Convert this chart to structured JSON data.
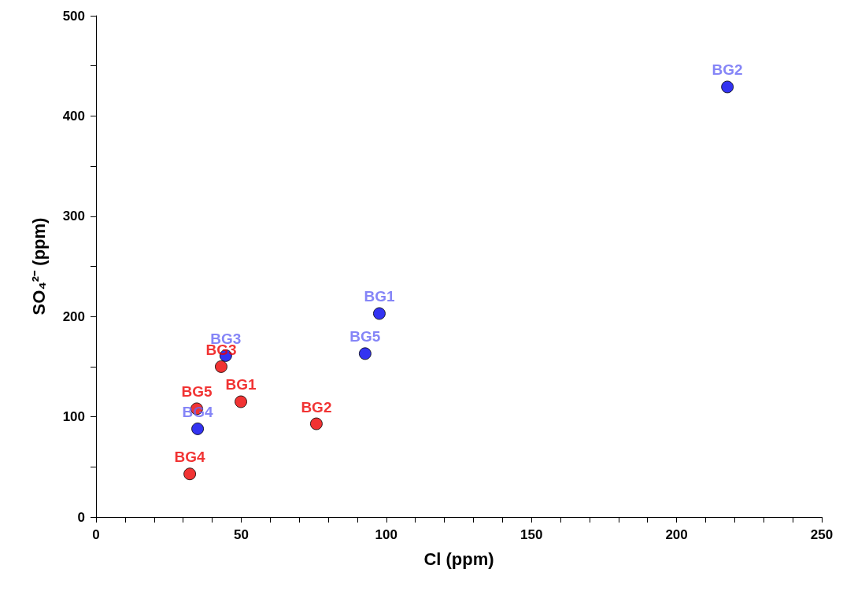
{
  "chart_data": {
    "type": "scatter",
    "xlabel": "Cl (ppm)",
    "ylabel": "SO₄²⁻ (ppm)",
    "marker": "circle",
    "grid": false,
    "xlim": [
      0,
      250
    ],
    "ylim": [
      0,
      500
    ],
    "xticks": [
      0,
      {
        "value": 10,
        "label": null
      },
      {
        "value": 20,
        "label": null
      },
      {
        "value": 30,
        "label": null
      },
      {
        "value": 40,
        "label": null
      },
      50,
      {
        "value": 60,
        "label": null
      },
      {
        "value": 70,
        "label": null
      },
      {
        "value": 80,
        "label": null
      },
      {
        "value": 90,
        "label": null
      },
      100,
      {
        "value": 110,
        "label": null
      },
      {
        "value": 120,
        "label": null
      },
      {
        "value": 130,
        "label": null
      },
      {
        "value": 140,
        "label": null
      },
      150,
      {
        "value": 160,
        "label": null
      },
      {
        "value": 170,
        "label": null
      },
      {
        "value": 180,
        "label": null
      },
      {
        "value": 190,
        "label": null
      },
      200,
      {
        "value": 210,
        "label": null
      },
      {
        "value": 220,
        "label": null
      },
      {
        "value": 230,
        "label": null
      },
      {
        "value": 240,
        "label": null
      },
      250
    ],
    "yticks": [
      0,
      {
        "value": 50,
        "label": null
      },
      100,
      {
        "value": 150,
        "label": null
      },
      200,
      {
        "value": 250,
        "label": null
      },
      300,
      {
        "value": 350,
        "label": null
      },
      400,
      {
        "value": 450,
        "label": null
      },
      500
    ],
    "series": [
      {
        "color": "#0000ee",
        "x": [
          97.6,
          217.5,
          44.7,
          35,
          92.7
        ],
        "values": [
          203,
          429,
          161,
          88,
          163
        ],
        "value_labels": [
          "BG1",
          "BG2",
          "BG3",
          "BG4",
          "BG5"
        ]
      },
      {
        "color": "#ee0000",
        "x": [
          49.9,
          75.9,
          43.1,
          32.3,
          34.7
        ],
        "values": [
          115,
          93,
          150,
          43,
          108
        ],
        "value_labels": [
          "BG1",
          "BG2",
          "BG3",
          "BG4",
          "BG5"
        ]
      }
    ]
  }
}
